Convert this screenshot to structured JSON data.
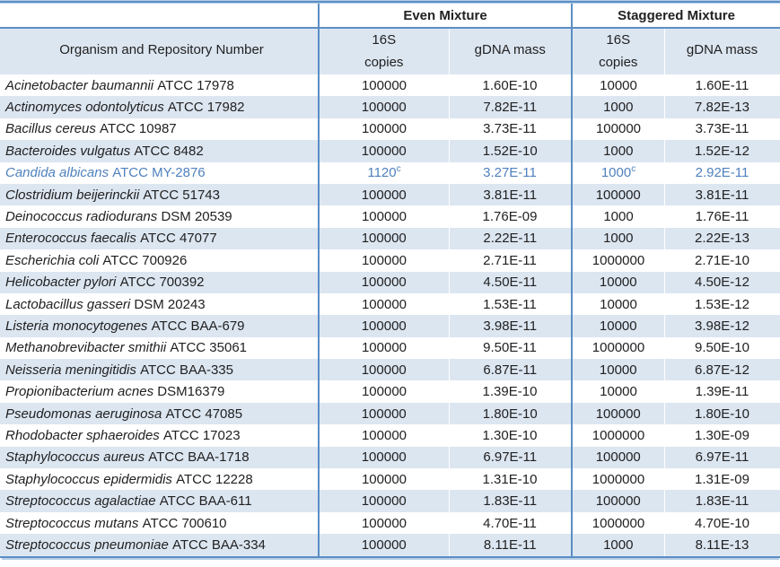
{
  "colors": {
    "border_blue": "#5b8ec4",
    "row_shade_blue": "#dce6f1",
    "highlight_text_blue": "#4f81bd",
    "body_text": "#212121"
  },
  "table": {
    "group_headers": {
      "even": "Even Mixture",
      "staggered": "Staggered Mixture"
    },
    "column_headers": {
      "organism": "Organism and Repository Number",
      "copies_line1": "16S",
      "copies_line2": "copies",
      "gdna_mass": "gDNA mass"
    },
    "rows": [
      {
        "name": "Acinetobacter baumannii",
        "repo": "ATCC 17978",
        "even_copies": "100000",
        "even_sup": "",
        "even_gdna": "1.60E-10",
        "stag_copies": "10000",
        "stag_sup": "",
        "stag_gdna": "1.60E-11",
        "highlight": false
      },
      {
        "name": "Actinomyces odontolyticus",
        "repo": "ATCC 17982",
        "even_copies": "100000",
        "even_sup": "",
        "even_gdna": "7.82E-11",
        "stag_copies": "1000",
        "stag_sup": "",
        "stag_gdna": "7.82E-13",
        "highlight": false
      },
      {
        "name": "Bacillus cereus",
        "repo": "ATCC 10987",
        "even_copies": "100000",
        "even_sup": "",
        "even_gdna": "3.73E-11",
        "stag_copies": "100000",
        "stag_sup": "",
        "stag_gdna": "3.73E-11",
        "highlight": false
      },
      {
        "name": "Bacteroides vulgatus",
        "repo": "ATCC 8482",
        "even_copies": "100000",
        "even_sup": "",
        "even_gdna": "1.52E-10",
        "stag_copies": "1000",
        "stag_sup": "",
        "stag_gdna": "1.52E-12",
        "highlight": false
      },
      {
        "name": "Candida albicans",
        "repo": "ATCC MY-2876",
        "even_copies": "1120",
        "even_sup": "c",
        "even_gdna": "3.27E-11",
        "stag_copies": "1000",
        "stag_sup": "c",
        "stag_gdna": "2.92E-11",
        "highlight": true
      },
      {
        "name": "Clostridium beijerinckii",
        "repo": "ATCC 51743",
        "even_copies": "100000",
        "even_sup": "",
        "even_gdna": "3.81E-11",
        "stag_copies": "100000",
        "stag_sup": "",
        "stag_gdna": "3.81E-11",
        "highlight": false
      },
      {
        "name": "Deinococcus radiodurans",
        "repo": "DSM 20539",
        "even_copies": "100000",
        "even_sup": "",
        "even_gdna": "1.76E-09",
        "stag_copies": "1000",
        "stag_sup": "",
        "stag_gdna": "1.76E-11",
        "highlight": false
      },
      {
        "name": "Enterococcus faecalis",
        "repo": "ATCC 47077",
        "even_copies": "100000",
        "even_sup": "",
        "even_gdna": "2.22E-11",
        "stag_copies": "1000",
        "stag_sup": "",
        "stag_gdna": "2.22E-13",
        "highlight": false
      },
      {
        "name": "Escherichia coli",
        "repo": "ATCC 700926",
        "even_copies": "100000",
        "even_sup": "",
        "even_gdna": "2.71E-11",
        "stag_copies": "1000000",
        "stag_sup": "",
        "stag_gdna": "2.71E-10",
        "highlight": false
      },
      {
        "name": "Helicobacter pylori",
        "repo": "ATCC 700392",
        "even_copies": "100000",
        "even_sup": "",
        "even_gdna": "4.50E-11",
        "stag_copies": "10000",
        "stag_sup": "",
        "stag_gdna": "4.50E-12",
        "highlight": false
      },
      {
        "name": "Lactobacillus gasseri",
        "repo": "DSM 20243",
        "even_copies": "100000",
        "even_sup": "",
        "even_gdna": "1.53E-11",
        "stag_copies": "10000",
        "stag_sup": "",
        "stag_gdna": "1.53E-12",
        "highlight": false
      },
      {
        "name": "Listeria monocytogenes",
        "repo": "ATCC BAA-679",
        "even_copies": "100000",
        "even_sup": "",
        "even_gdna": "3.98E-11",
        "stag_copies": "10000",
        "stag_sup": "",
        "stag_gdna": "3.98E-12",
        "highlight": false
      },
      {
        "name": "Methanobrevibacter smithii",
        "repo": "ATCC 35061",
        "even_copies": "100000",
        "even_sup": "",
        "even_gdna": "9.50E-11",
        "stag_copies": "1000000",
        "stag_sup": "",
        "stag_gdna": "9.50E-10",
        "highlight": false
      },
      {
        "name": "Neisseria meningitidis",
        "repo": "ATCC BAA-335",
        "even_copies": "100000",
        "even_sup": "",
        "even_gdna": "6.87E-11",
        "stag_copies": "10000",
        "stag_sup": "",
        "stag_gdna": "6.87E-12",
        "highlight": false
      },
      {
        "name": "Propionibacterium acnes",
        "repo": "DSM16379",
        "even_copies": "100000",
        "even_sup": "",
        "even_gdna": "1.39E-10",
        "stag_copies": "10000",
        "stag_sup": "",
        "stag_gdna": "1.39E-11",
        "highlight": false
      },
      {
        "name": "Pseudomonas aeruginosa",
        "repo": "ATCC 47085",
        "even_copies": "100000",
        "even_sup": "",
        "even_gdna": "1.80E-10",
        "stag_copies": "100000",
        "stag_sup": "",
        "stag_gdna": "1.80E-10",
        "highlight": false
      },
      {
        "name": "Rhodobacter sphaeroides",
        "repo": "ATCC 17023",
        "even_copies": "100000",
        "even_sup": "",
        "even_gdna": "1.30E-10",
        "stag_copies": "1000000",
        "stag_sup": "",
        "stag_gdna": "1.30E-09",
        "highlight": false
      },
      {
        "name": "Staphylococcus aureus",
        "repo": "ATCC BAA-1718",
        "even_copies": "100000",
        "even_sup": "",
        "even_gdna": "6.97E-11",
        "stag_copies": "100000",
        "stag_sup": "",
        "stag_gdna": "6.97E-11",
        "highlight": false
      },
      {
        "name": "Staphylococcus epidermidis",
        "repo": "ATCC 12228",
        "even_copies": "100000",
        "even_sup": "",
        "even_gdna": "1.31E-10",
        "stag_copies": "1000000",
        "stag_sup": "",
        "stag_gdna": "1.31E-09",
        "highlight": false
      },
      {
        "name": "Streptococcus agalactiae",
        "repo": "ATCC BAA-611",
        "even_copies": "100000",
        "even_sup": "",
        "even_gdna": "1.83E-11",
        "stag_copies": "100000",
        "stag_sup": "",
        "stag_gdna": "1.83E-11",
        "highlight": false
      },
      {
        "name": "Streptococcus mutans",
        "repo": "ATCC 700610",
        "even_copies": "100000",
        "even_sup": "",
        "even_gdna": "4.70E-11",
        "stag_copies": "1000000",
        "stag_sup": "",
        "stag_gdna": "4.70E-10",
        "highlight": false
      },
      {
        "name": "Streptococcus pneumoniae",
        "repo": "ATCC BAA-334",
        "even_copies": "100000",
        "even_sup": "",
        "even_gdna": "8.11E-11",
        "stag_copies": "1000",
        "stag_sup": "",
        "stag_gdna": "8.11E-13",
        "highlight": false
      }
    ]
  }
}
